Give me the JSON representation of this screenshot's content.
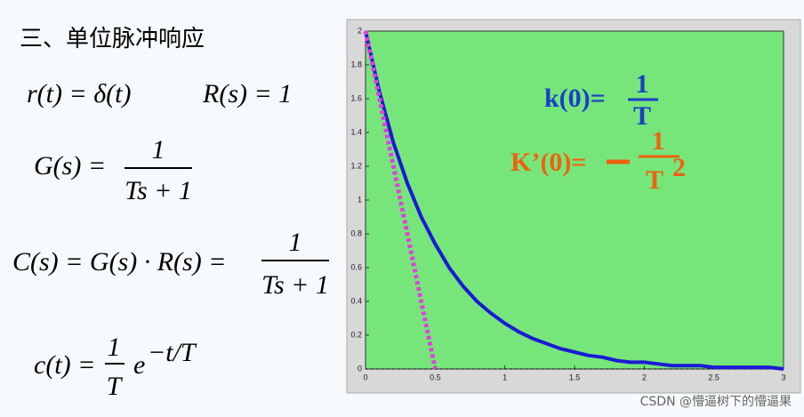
{
  "slide": {
    "heading": "三、单位脉冲响应",
    "formulas": {
      "r": "r(t) = δ(t)",
      "R": "R(s) = 1",
      "G": {
        "lhs": "G(s) =",
        "num": "1",
        "den": "Ts + 1"
      },
      "C": {
        "lhs": "C(s) = G(s) · R(s) =",
        "num": "1",
        "den": "Ts + 1"
      },
      "c": {
        "lhs": "c(t) =",
        "num": "1",
        "den": "T",
        "base": "e",
        "exp": "−t/T"
      }
    },
    "watermark": "CSDN @懵逼树下的懵逼果"
  },
  "chart_data": {
    "type": "line",
    "x": [
      0,
      0.1,
      0.2,
      0.3,
      0.4,
      0.5,
      0.6,
      0.7,
      0.8,
      0.9,
      1.0,
      1.1,
      1.2,
      1.3,
      1.4,
      1.5,
      1.6,
      1.7,
      1.8,
      1.9,
      2.0,
      2.1,
      2.2,
      2.3,
      2.4,
      2.5,
      2.6,
      2.7,
      2.8,
      2.9,
      3.0
    ],
    "series": [
      {
        "color": "#1a1ad6",
        "values": [
          2,
          1.64,
          1.34,
          1.1,
          0.9,
          0.74,
          0.6,
          0.49,
          0.4,
          0.33,
          0.27,
          0.22,
          0.18,
          0.15,
          0.12,
          0.1,
          0.08,
          0.07,
          0.05,
          0.04,
          0.04,
          0.03,
          0.02,
          0.02,
          0.02,
          0.01,
          0.01,
          0.01,
          0.01,
          0.01,
          0.0
        ]
      },
      {
        "color": "#e040e0",
        "x": [
          0,
          0.5
        ],
        "values": [
          2,
          0
        ],
        "dashed": true
      }
    ],
    "xlim": [
      0,
      3
    ],
    "xticks": [
      0,
      0.5,
      1,
      1.5,
      2,
      2.5,
      3
    ],
    "ylim": [
      0,
      2
    ],
    "yticks": [
      0,
      0.2,
      0.4,
      0.6,
      0.8,
      1,
      1.2,
      1.4,
      1.6,
      1.8,
      2
    ],
    "background": "#76e67a",
    "annotations": {
      "k0": {
        "lhs": "k(0)=",
        "num": "1",
        "den": "T"
      },
      "dk0": {
        "lhs": "K’(0)=",
        "num": "1",
        "den": "T",
        "power": "2"
      }
    }
  }
}
